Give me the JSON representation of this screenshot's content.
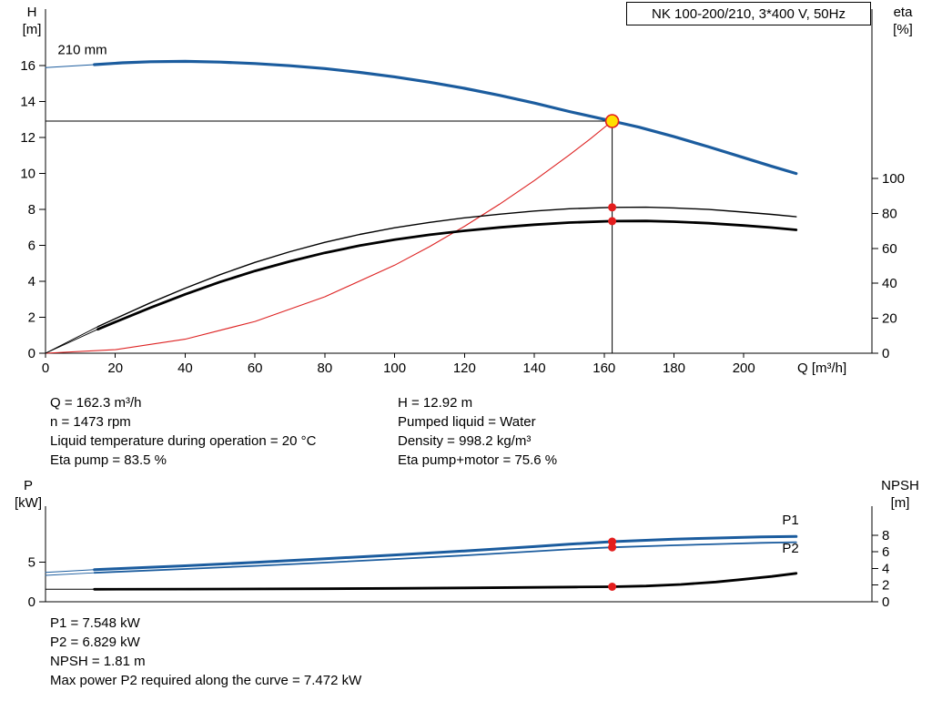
{
  "colors": {
    "curve_blue": "#1b5c9e",
    "curve_black": "#000000",
    "curve_red": "#dd2222",
    "duty_fill": "#ffe000",
    "marker_red": "#e31e1e",
    "axis_black": "#000000"
  },
  "header": {
    "title": "NK 100-200/210, 3*400 V, 50Hz"
  },
  "labels": {
    "top_left_axis": [
      "H",
      "[m]"
    ],
    "top_right_axis": [
      "eta",
      "[%]"
    ],
    "top_x_axis": "Q [m³/h]",
    "bottom_left_axis": [
      "P",
      "[kW]"
    ],
    "bottom_right_axis": [
      "NPSH",
      "[m]"
    ]
  },
  "results_top": {
    "col1": [
      "Q = 162.3 m³/h",
      "n = 1473 rpm",
      "Liquid temperature during operation = 20 °C",
      "Eta pump = 83.5 %"
    ],
    "col2": [
      "H = 12.92 m",
      "Pumped liquid = Water",
      "Density = 998.2 kg/m³",
      "Eta pump+motor = 75.6 %"
    ]
  },
  "results_bottom": [
    "P1 = 7.548 kW",
    "P2 = 6.829 kW",
    "NPSH = 1.81 m",
    "Max power P2 required along the curve = 7.472 kW"
  ],
  "chart_data": [
    {
      "id": "head-eta-chart",
      "type": "line",
      "title": "NK 100-200/210, 3*400 V, 50Hz",
      "x_axis": {
        "label": "Q [m³/h]",
        "range": [
          0,
          236.7
        ],
        "ticks": [
          0,
          20,
          40,
          60,
          80,
          100,
          120,
          140,
          160,
          180,
          200
        ]
      },
      "left_axis": {
        "label": "H [m]",
        "range": [
          0,
          19.15
        ],
        "ticks": [
          0,
          2,
          4,
          6,
          8,
          10,
          12,
          14,
          16
        ]
      },
      "right_axis": {
        "label": "eta [%]",
        "range": [
          0,
          197
        ],
        "ticks": [
          0,
          20,
          40,
          60,
          80,
          100
        ]
      },
      "grid": false,
      "duty_point": {
        "q": 162.3,
        "h": 12.92
      },
      "series": [
        {
          "name": "head-210mm-leadin",
          "axis": "left",
          "color": "#1b5c9e",
          "width": 1,
          "points": [
            [
              0,
              15.9
            ],
            [
              14,
              16.06
            ]
          ]
        },
        {
          "name": "head-210mm-curve",
          "axis": "left",
          "color": "#1b5c9e",
          "width": 3.2,
          "points": [
            [
              14,
              16.06
            ],
            [
              22,
              16.16
            ],
            [
              30,
              16.22
            ],
            [
              40,
              16.24
            ],
            [
              50,
              16.2
            ],
            [
              60,
              16.12
            ],
            [
              70,
              16.0
            ],
            [
              80,
              15.84
            ],
            [
              90,
              15.63
            ],
            [
              100,
              15.38
            ],
            [
              110,
              15.08
            ],
            [
              120,
              14.74
            ],
            [
              130,
              14.35
            ],
            [
              140,
              13.92
            ],
            [
              150,
              13.45
            ],
            [
              162.3,
              12.92
            ],
            [
              170,
              12.58
            ],
            [
              180,
              12.05
            ],
            [
              190,
              11.48
            ],
            [
              200,
              10.88
            ],
            [
              208,
              10.4
            ],
            [
              215,
              10.0
            ]
          ]
        },
        {
          "name": "system-curve",
          "axis": "left",
          "color": "#dd2222",
          "width": 1.1,
          "points": [
            [
              0,
              0
            ],
            [
              20,
              0.2
            ],
            [
              40,
              0.78
            ],
            [
              60,
              1.77
            ],
            [
              80,
              3.14
            ],
            [
              100,
              4.9
            ],
            [
              110,
              5.93
            ],
            [
              120,
              7.06
            ],
            [
              130,
              8.29
            ],
            [
              140,
              9.61
            ],
            [
              150,
              11.03
            ],
            [
              156,
              11.92
            ],
            [
              162.3,
              12.92
            ]
          ]
        },
        {
          "name": "eta-pump-leadin",
          "axis": "right",
          "color": "#000000",
          "width": 0.9,
          "points": [
            [
              0,
              0
            ],
            [
              15,
              15.2
            ]
          ]
        },
        {
          "name": "eta-pump-curve",
          "axis": "right",
          "color": "#000000",
          "width": 1.4,
          "points": [
            [
              15,
              15.2
            ],
            [
              20,
              19.8
            ],
            [
              30,
              28.8
            ],
            [
              40,
              37.2
            ],
            [
              50,
              45.0
            ],
            [
              60,
              52.0
            ],
            [
              70,
              58.1
            ],
            [
              80,
              63.5
            ],
            [
              90,
              68.0
            ],
            [
              100,
              71.8
            ],
            [
              110,
              74.9
            ],
            [
              120,
              77.5
            ],
            [
              130,
              79.6
            ],
            [
              140,
              81.4
            ],
            [
              150,
              82.7
            ],
            [
              162.3,
              83.5
            ],
            [
              172,
              83.6
            ],
            [
              180,
              83.2
            ],
            [
              190,
              82.3
            ],
            [
              200,
              80.8
            ],
            [
              208,
              79.5
            ],
            [
              215,
              78.1
            ]
          ]
        },
        {
          "name": "eta-pump-motor-leadin",
          "axis": "right",
          "color": "#000000",
          "width": 0.9,
          "points": [
            [
              0,
              0
            ],
            [
              15,
              13.7
            ]
          ]
        },
        {
          "name": "eta-pump-motor-curve",
          "axis": "right",
          "color": "#000000",
          "width": 2.8,
          "points": [
            [
              15,
              13.7
            ],
            [
              20,
              17.9
            ],
            [
              30,
              26.0
            ],
            [
              40,
              33.7
            ],
            [
              50,
              40.8
            ],
            [
              60,
              47.1
            ],
            [
              70,
              52.6
            ],
            [
              80,
              57.5
            ],
            [
              90,
              61.6
            ],
            [
              100,
              65.0
            ],
            [
              110,
              67.8
            ],
            [
              120,
              70.1
            ],
            [
              130,
              72.0
            ],
            [
              140,
              73.6
            ],
            [
              150,
              74.8
            ],
            [
              162.3,
              75.6
            ],
            [
              172,
              75.7
            ],
            [
              180,
              75.3
            ],
            [
              190,
              74.4
            ],
            [
              200,
              73.1
            ],
            [
              208,
              71.9
            ],
            [
              215,
              70.6
            ]
          ]
        }
      ],
      "markers": [
        {
          "name": "duty-point-marker",
          "kind": "duty",
          "q": 162.3,
          "v": 12.92,
          "axis": "left"
        },
        {
          "name": "eta-pump-marker",
          "kind": "dot",
          "q": 162.3,
          "v": 83.5,
          "axis": "right"
        },
        {
          "name": "eta-pump-motor-marker",
          "kind": "dot",
          "q": 162.3,
          "v": 75.6,
          "axis": "right"
        }
      ],
      "annotations": [
        {
          "name": "impeller-diameter-label",
          "text": "210 mm",
          "q": 3.5,
          "v": 16.65,
          "axis": "left",
          "color": "#000000",
          "anchor": "start"
        }
      ]
    },
    {
      "id": "power-npsh-chart",
      "type": "line",
      "title": "",
      "x_axis": {
        "label": "",
        "range": [
          0,
          236.7
        ],
        "ticks": []
      },
      "left_axis": {
        "label": "P [kW]",
        "range": [
          0,
          12
        ],
        "ticks": [
          0,
          5
        ]
      },
      "right_axis": {
        "label": "NPSH [m]",
        "range": [
          0,
          11.5
        ],
        "ticks": [
          0,
          2,
          4,
          6,
          8
        ]
      },
      "grid": false,
      "series": [
        {
          "name": "p1-leadin",
          "axis": "left",
          "color": "#1b5c9e",
          "width": 1,
          "points": [
            [
              0,
              3.68
            ],
            [
              14,
              4.02
            ]
          ]
        },
        {
          "name": "p1-curve",
          "axis": "left",
          "color": "#1b5c9e",
          "width": 3,
          "points": [
            [
              14,
              4.02
            ],
            [
              20,
              4.14
            ],
            [
              40,
              4.52
            ],
            [
              60,
              4.94
            ],
            [
              80,
              5.4
            ],
            [
              100,
              5.88
            ],
            [
              120,
              6.38
            ],
            [
              140,
              6.93
            ],
            [
              150,
              7.22
            ],
            [
              162.3,
              7.548
            ],
            [
              180,
              7.86
            ],
            [
              195,
              8.04
            ],
            [
              205,
              8.15
            ],
            [
              215,
              8.2
            ]
          ]
        },
        {
          "name": "p2-leadin",
          "axis": "left",
          "color": "#1b5c9e",
          "width": 0.9,
          "points": [
            [
              0,
              3.32
            ],
            [
              14,
              3.64
            ]
          ]
        },
        {
          "name": "p2-curve",
          "axis": "left",
          "color": "#1b5c9e",
          "width": 1.8,
          "points": [
            [
              14,
              3.64
            ],
            [
              20,
              3.75
            ],
            [
              40,
              4.12
            ],
            [
              60,
              4.5
            ],
            [
              80,
              4.92
            ],
            [
              100,
              5.36
            ],
            [
              120,
              5.82
            ],
            [
              140,
              6.33
            ],
            [
              150,
              6.58
            ],
            [
              162.3,
              6.829
            ],
            [
              180,
              7.09
            ],
            [
              195,
              7.27
            ],
            [
              205,
              7.39
            ],
            [
              215,
              7.472
            ]
          ]
        },
        {
          "name": "npsh-leadin",
          "axis": "right",
          "color": "#000000",
          "width": 1,
          "points": [
            [
              0,
              1.5
            ],
            [
              14,
              1.5
            ]
          ]
        },
        {
          "name": "npsh-curve",
          "axis": "right",
          "color": "#000000",
          "width": 2.8,
          "points": [
            [
              14,
              1.5
            ],
            [
              40,
              1.52
            ],
            [
              80,
              1.57
            ],
            [
              100,
              1.61
            ],
            [
              120,
              1.66
            ],
            [
              140,
              1.73
            ],
            [
              152,
              1.77
            ],
            [
              162.3,
              1.81
            ],
            [
              172,
              1.9
            ],
            [
              182,
              2.08
            ],
            [
              192,
              2.38
            ],
            [
              200,
              2.7
            ],
            [
              208,
              3.05
            ],
            [
              215,
              3.42
            ]
          ]
        }
      ],
      "markers": [
        {
          "name": "p1-marker",
          "kind": "dot",
          "q": 162.3,
          "v": 7.548,
          "axis": "left"
        },
        {
          "name": "p2-marker",
          "kind": "dot",
          "q": 162.3,
          "v": 6.829,
          "axis": "left"
        },
        {
          "name": "npsh-marker",
          "kind": "dot",
          "q": 162.3,
          "v": 1.81,
          "axis": "right"
        }
      ],
      "annotations": [
        {
          "name": "p1-curve-label",
          "text": "P1",
          "q": 211,
          "v": 9.7,
          "axis": "left",
          "color": "#1b5c9e",
          "anchor": "start"
        },
        {
          "name": "p2-curve-label",
          "text": "P2",
          "q": 211,
          "v": 6.2,
          "axis": "left",
          "color": "#1b5c9e",
          "anchor": "start"
        }
      ]
    }
  ]
}
